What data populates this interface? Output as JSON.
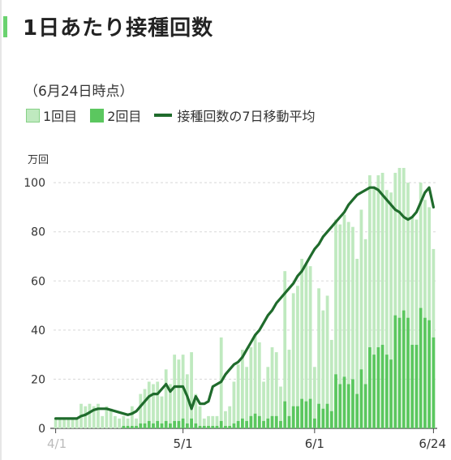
{
  "title": "1日あたり接種回数",
  "as_of": "（6月24日時点）",
  "legend": {
    "first_dose": "1回目",
    "second_dose": "2回目",
    "moving_avg": "接種回数の7日移動平均"
  },
  "colors": {
    "first_dose": "#bfe9bf",
    "second_dose": "#5bc75f",
    "moving_avg": "#1f6b2c",
    "accent": "#6ad26f"
  },
  "chart_data": {
    "type": "bar",
    "stacked": true,
    "unit_label": "万回",
    "ylim": [
      0,
      105
    ],
    "yticks": [
      0,
      20,
      40,
      60,
      80,
      100
    ],
    "grid": true,
    "legend_position": "top-left",
    "x_start": "4/1",
    "x_end": "6/24",
    "xtick_labels": [
      "4/1",
      "5/1",
      "6/1",
      "6/24"
    ],
    "series": [
      {
        "name": "1回目",
        "stack": "total",
        "values": [
          4,
          4,
          4,
          4,
          4,
          4,
          10,
          9,
          10,
          9,
          10,
          5,
          9,
          8,
          5,
          4,
          5,
          4,
          9,
          4,
          14,
          16,
          19,
          18,
          19,
          13,
          24,
          18,
          30,
          28,
          30,
          22,
          31,
          14,
          9,
          4,
          5,
          5,
          5,
          37,
          7,
          9,
          19,
          26,
          32,
          25,
          33,
          38,
          35,
          19,
          25,
          33,
          31,
          17,
          64,
          32,
          55,
          58,
          69,
          67,
          66,
          25,
          57,
          48,
          54,
          36,
          85,
          83,
          87,
          84,
          82,
          69,
          89,
          77,
          103,
          98,
          103,
          104,
          97,
          96,
          104,
          106,
          106,
          100,
          86,
          85,
          100,
          93,
          90,
          73
        ]
      },
      {
        "name": "2回目",
        "stack": "total",
        "values": [
          0,
          0,
          0,
          0,
          0,
          0,
          0,
          0,
          0,
          0,
          0,
          0,
          0,
          0,
          0,
          0,
          1,
          1,
          1,
          1,
          2,
          2,
          3,
          2,
          3,
          2,
          3,
          2,
          3,
          3,
          4,
          2,
          4,
          2,
          1,
          1,
          1,
          1,
          1,
          3,
          1,
          1,
          2,
          3,
          4,
          3,
          5,
          6,
          5,
          3,
          4,
          5,
          5,
          3,
          11,
          5,
          9,
          9,
          12,
          11,
          12,
          4,
          10,
          8,
          10,
          7,
          22,
          18,
          21,
          18,
          20,
          14,
          24,
          18,
          33,
          30,
          33,
          34,
          30,
          28,
          46,
          45,
          48,
          45,
          34,
          34,
          49,
          45,
          44,
          37
        ]
      },
      {
        "name": "接種回数の7日移動平均",
        "values": [
          4,
          4,
          4,
          4,
          4,
          4,
          5,
          5.5,
          6.5,
          7.5,
          8,
          8,
          8,
          7.5,
          7,
          6.5,
          6,
          5.5,
          6,
          7,
          9,
          11,
          13,
          14,
          14,
          16,
          18,
          15,
          17,
          17,
          17,
          13,
          8,
          13,
          10,
          10,
          11,
          17,
          18,
          19,
          22,
          24,
          26,
          27,
          29,
          32,
          35,
          38,
          40,
          43,
          46,
          48,
          51,
          53,
          55,
          57,
          59,
          62,
          64,
          67,
          70,
          73,
          75,
          78,
          80,
          82,
          84,
          86,
          88,
          91,
          93,
          95,
          96,
          97,
          98,
          98,
          97,
          95,
          93,
          91,
          89,
          88,
          86,
          85,
          86,
          88,
          92,
          96,
          98,
          90
        ]
      }
    ]
  }
}
